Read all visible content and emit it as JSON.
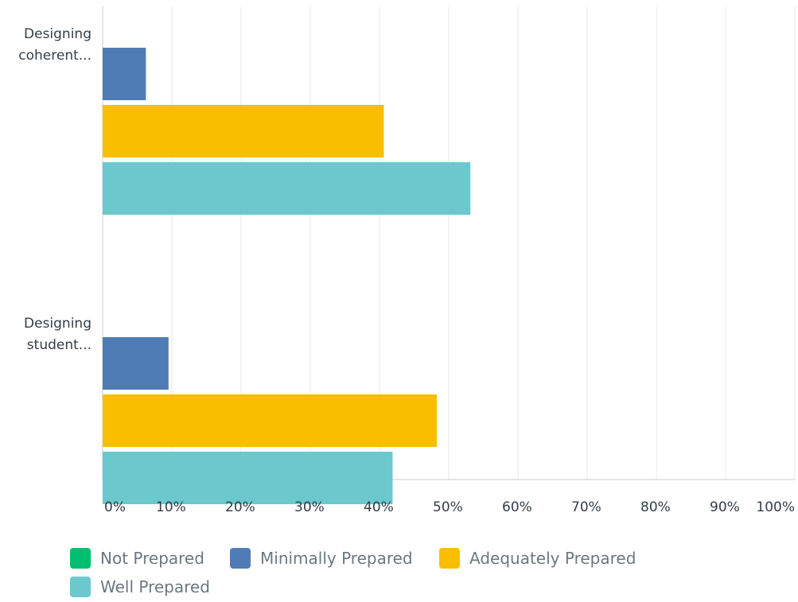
{
  "chart_data": {
    "type": "bar",
    "orientation": "horizontal",
    "categories": [
      "Designing coherent...",
      "Designing student..."
    ],
    "category_lines": [
      [
        "Designing",
        "coherent..."
      ],
      [
        "Designing",
        "student..."
      ]
    ],
    "series": [
      {
        "name": "Not Prepared",
        "color": "#00bf6f",
        "values": [
          0,
          0
        ]
      },
      {
        "name": "Minimally Prepared",
        "color": "#507cb6",
        "values": [
          6.25,
          9.52
        ]
      },
      {
        "name": "Adequately Prepared",
        "color": "#f9be00",
        "values": [
          40.63,
          48.29
        ]
      },
      {
        "name": "Well Prepared",
        "color": "#6bc8cd",
        "values": [
          53.13,
          41.89
        ]
      }
    ],
    "xlim": [
      0,
      100
    ],
    "xticks": [
      "0%",
      "10%",
      "20%",
      "30%",
      "40%",
      "50%",
      "60%",
      "70%",
      "80%",
      "90%",
      "100%"
    ],
    "grid": true,
    "legend_position": "bottom",
    "title": "",
    "xlabel": "",
    "ylabel": ""
  },
  "colors": {
    "grid": "#e6e8ea",
    "axis": "#c8ccce",
    "text": "#333e48",
    "legend_text": "#6b787f"
  }
}
